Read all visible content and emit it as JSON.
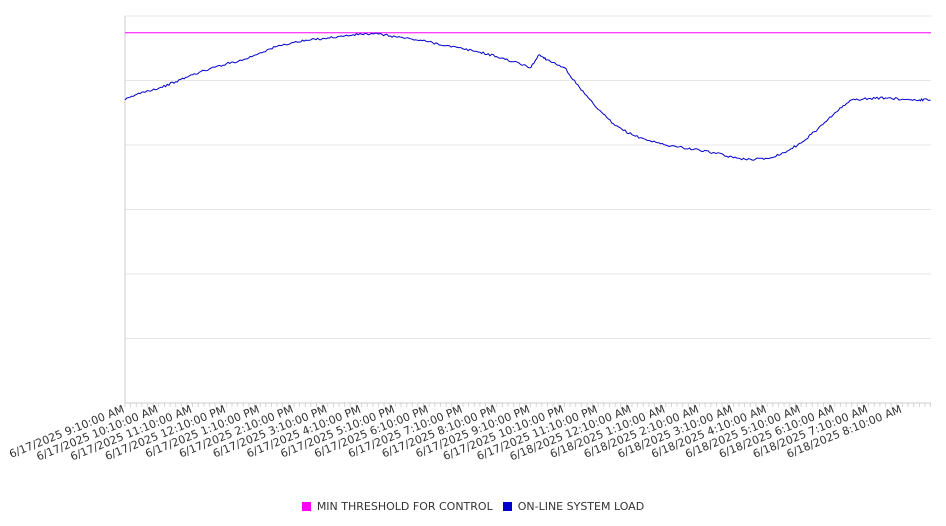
{
  "chart_data": {
    "type": "line",
    "grid": true,
    "legend_position": "bottom",
    "title": "",
    "xlabel": "",
    "ylabel": "",
    "ylim": [
      0,
      6
    ],
    "x_tick_labels": [
      "6/17/2025 9:10:00 AM",
      "6/17/2025 10:10:00 AM",
      "6/17/2025 11:10:00 AM",
      "6/17/2025 12:10:00 PM",
      "6/17/2025 1:10:00 PM",
      "6/17/2025 2:10:00 PM",
      "6/17/2025 3:10:00 PM",
      "6/17/2025 4:10:00 PM",
      "6/17/2025 5:10:00 PM",
      "6/17/2025 6:10:00 PM",
      "6/17/2025 7:10:00 PM",
      "6/17/2025 8:10:00 PM",
      "6/17/2025 9:10:00 PM",
      "6/17/2025 10:10:00 PM",
      "6/17/2025 11:10:00 PM",
      "6/18/2025 12:10:00 AM",
      "6/18/2025 1:10:00 AM",
      "6/18/2025 2:10:00 AM",
      "6/18/2025 3:10:00 AM",
      "6/18/2025 4:10:00 AM",
      "6/18/2025 5:10:00 AM",
      "6/18/2025 6:10:00 AM",
      "6/18/2025 7:10:00 AM",
      "6/18/2025 8:10:00 AM"
    ],
    "series": [
      {
        "name": "MIN THRESHOLD FOR CONTROL",
        "color": "#ff00ff",
        "x": [
          "6/17/2025 9:10:00 AM",
          "6/18/2025 9:00:00 AM"
        ],
        "values": [
          5.74,
          5.74
        ]
      },
      {
        "name": "ON-LINE SYSTEM LOAD",
        "color": "#0000cc",
        "x": [
          "6/17/2025 9:10:00 AM",
          "6/17/2025 9:40:00 AM",
          "6/17/2025 10:10:00 AM",
          "6/17/2025 10:40:00 AM",
          "6/17/2025 11:10:00 AM",
          "6/17/2025 11:40:00 AM",
          "6/17/2025 12:10:00 PM",
          "6/17/2025 12:40:00 PM",
          "6/17/2025 1:10:00 PM",
          "6/17/2025 1:40:00 PM",
          "6/17/2025 2:10:00 PM",
          "6/17/2025 2:40:00 PM",
          "6/17/2025 3:10:00 PM",
          "6/17/2025 3:40:00 PM",
          "6/17/2025 4:10:00 PM",
          "6/17/2025 4:40:00 PM",
          "6/17/2025 5:10:00 PM",
          "6/17/2025 5:40:00 PM",
          "6/17/2025 6:10:00 PM",
          "6/17/2025 6:40:00 PM",
          "6/17/2025 7:10:00 PM",
          "6/17/2025 7:40:00 PM",
          "6/17/2025 8:10:00 PM",
          "6/17/2025 8:40:00 PM",
          "6/17/2025 9:10:00 PM",
          "6/17/2025 9:25:00 PM",
          "6/17/2025 9:40:00 PM",
          "6/17/2025 10:10:00 PM",
          "6/17/2025 10:40:00 PM",
          "6/17/2025 11:10:00 PM",
          "6/17/2025 11:40:00 PM",
          "6/18/2025 12:10:00 AM",
          "6/18/2025 12:40:00 AM",
          "6/18/2025 1:10:00 AM",
          "6/18/2025 1:40:00 AM",
          "6/18/2025 2:10:00 AM",
          "6/18/2025 2:40:00 AM",
          "6/18/2025 3:10:00 AM",
          "6/18/2025 3:40:00 AM",
          "6/18/2025 4:10:00 AM",
          "6/18/2025 4:40:00 AM",
          "6/18/2025 5:10:00 AM",
          "6/18/2025 5:40:00 AM",
          "6/18/2025 6:10:00 AM",
          "6/18/2025 6:40:00 AM",
          "6/18/2025 7:10:00 AM",
          "6/18/2025 7:40:00 AM",
          "6/18/2025 8:10:00 AM",
          "6/18/2025 8:40:00 AM",
          "6/18/2025 9:00:00 AM"
        ],
        "values": [
          4.7,
          4.82,
          4.88,
          4.98,
          5.09,
          5.18,
          5.26,
          5.32,
          5.43,
          5.53,
          5.59,
          5.63,
          5.66,
          5.69,
          5.72,
          5.72,
          5.68,
          5.64,
          5.6,
          5.54,
          5.49,
          5.44,
          5.37,
          5.29,
          5.2,
          5.4,
          5.32,
          5.2,
          4.85,
          4.55,
          4.3,
          4.16,
          4.07,
          4.0,
          3.96,
          3.92,
          3.87,
          3.8,
          3.78,
          3.79,
          3.88,
          4.03,
          4.25,
          4.5,
          4.7,
          4.72,
          4.73,
          4.71,
          4.7,
          4.7
        ]
      }
    ]
  }
}
